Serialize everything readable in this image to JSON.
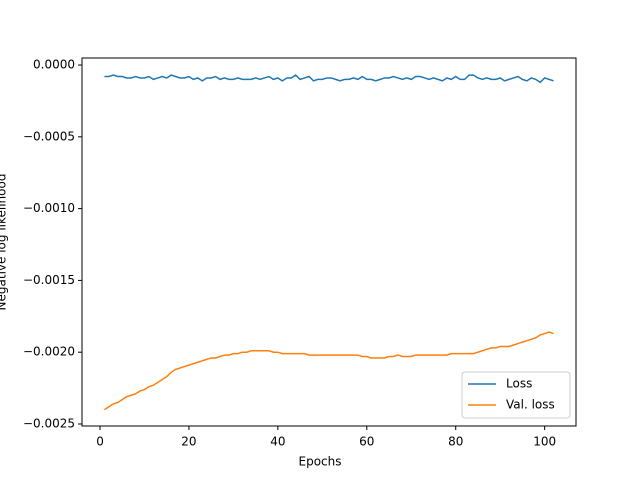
{
  "chart_data": {
    "type": "line",
    "xlabel": "Epochs",
    "ylabel": "Negative log likelihood",
    "x": [
      1,
      2,
      3,
      4,
      5,
      6,
      7,
      8,
      9,
      10,
      11,
      12,
      13,
      14,
      15,
      16,
      17,
      18,
      19,
      20,
      21,
      22,
      23,
      24,
      25,
      26,
      27,
      28,
      29,
      30,
      31,
      32,
      33,
      34,
      35,
      36,
      37,
      38,
      39,
      40,
      41,
      42,
      43,
      44,
      45,
      46,
      47,
      48,
      49,
      50,
      51,
      52,
      53,
      54,
      55,
      56,
      57,
      58,
      59,
      60,
      61,
      62,
      63,
      64,
      65,
      66,
      67,
      68,
      69,
      70,
      71,
      72,
      73,
      74,
      75,
      76,
      77,
      78,
      79,
      80,
      81,
      82,
      83,
      84,
      85,
      86,
      87,
      88,
      89,
      90,
      91,
      92,
      93,
      94,
      95,
      96,
      97,
      98,
      99,
      100,
      101,
      102
    ],
    "series": [
      {
        "name": "Loss",
        "color": "#1f77b4",
        "values": [
          -8e-05,
          -8e-05,
          -7e-05,
          -8e-05,
          -8e-05,
          -9e-05,
          -9e-05,
          -8e-05,
          -9e-05,
          -9e-05,
          -8e-05,
          -0.0001,
          -9e-05,
          -8e-05,
          -9e-05,
          -7e-05,
          -8e-05,
          -9e-05,
          -9e-05,
          -8e-05,
          -0.0001,
          -9e-05,
          -0.00011,
          -9e-05,
          -9e-05,
          -8e-05,
          -0.0001,
          -9e-05,
          -0.0001,
          -0.0001,
          -9e-05,
          -0.0001,
          -0.0001,
          -0.0001,
          -9e-05,
          -0.0001,
          -9e-05,
          -8e-05,
          -0.0001,
          -9e-05,
          -0.00011,
          -9e-05,
          -9e-05,
          -7e-05,
          -0.0001,
          -9e-05,
          -8e-05,
          -0.00011,
          -0.0001,
          -0.0001,
          -9e-05,
          -9e-05,
          -0.0001,
          -0.00011,
          -0.0001,
          -0.0001,
          -9e-05,
          -0.0001,
          -8e-05,
          -0.0001,
          -0.0001,
          -0.00011,
          -0.0001,
          -9e-05,
          -9e-05,
          -8e-05,
          -9e-05,
          -0.0001,
          -9e-05,
          -0.0001,
          -8e-05,
          -8e-05,
          -9e-05,
          -0.0001,
          -9e-05,
          -0.0001,
          -0.00011,
          -9e-05,
          -0.0001,
          -8e-05,
          -0.0001,
          -0.0001,
          -7e-05,
          -7e-05,
          -9e-05,
          -0.0001,
          -9e-05,
          -0.0001,
          -0.0001,
          -9e-05,
          -0.00011,
          -0.0001,
          -9e-05,
          -8e-05,
          -0.0001,
          -0.00011,
          -9e-05,
          -0.0001,
          -0.00012,
          -9e-05,
          -0.0001,
          -0.00011
        ]
      },
      {
        "name": "Val. loss",
        "color": "#ff7f0e",
        "values": [
          -0.0024,
          -0.00238,
          -0.00236,
          -0.00235,
          -0.00233,
          -0.00231,
          -0.0023,
          -0.00229,
          -0.00227,
          -0.00226,
          -0.00224,
          -0.00223,
          -0.00221,
          -0.00219,
          -0.00217,
          -0.00214,
          -0.00212,
          -0.00211,
          -0.0021,
          -0.00209,
          -0.00208,
          -0.00207,
          -0.00206,
          -0.00205,
          -0.00204,
          -0.00204,
          -0.00203,
          -0.00202,
          -0.00202,
          -0.00201,
          -0.00201,
          -0.002,
          -0.002,
          -0.00199,
          -0.00199,
          -0.00199,
          -0.00199,
          -0.00199,
          -0.002,
          -0.002,
          -0.00201,
          -0.00201,
          -0.00201,
          -0.00201,
          -0.00201,
          -0.00201,
          -0.00202,
          -0.00202,
          -0.00202,
          -0.00202,
          -0.00202,
          -0.00202,
          -0.00202,
          -0.00202,
          -0.00202,
          -0.00202,
          -0.00202,
          -0.00202,
          -0.00203,
          -0.00203,
          -0.00204,
          -0.00204,
          -0.00204,
          -0.00204,
          -0.00203,
          -0.00203,
          -0.00202,
          -0.00203,
          -0.00203,
          -0.00203,
          -0.00202,
          -0.00202,
          -0.00202,
          -0.00202,
          -0.00202,
          -0.00202,
          -0.00202,
          -0.00202,
          -0.00201,
          -0.00201,
          -0.00201,
          -0.00201,
          -0.00201,
          -0.00201,
          -0.002,
          -0.00199,
          -0.00198,
          -0.00197,
          -0.00197,
          -0.00196,
          -0.00196,
          -0.00196,
          -0.00195,
          -0.00194,
          -0.00193,
          -0.00192,
          -0.00191,
          -0.0019,
          -0.00188,
          -0.00187,
          -0.00186,
          -0.00187
        ]
      }
    ],
    "xlim": [
      -4.05,
      107.05
    ],
    "xticks": [
      0,
      20,
      40,
      60,
      80,
      100
    ],
    "ylim": [
      -0.002514,
      4.9e-05
    ],
    "yticks": [
      {
        "value": 0,
        "label": "0.0000"
      },
      {
        "value": -0.0005,
        "label": "−0.0005"
      },
      {
        "value": -0.001,
        "label": "−0.0010"
      },
      {
        "value": -0.0015,
        "label": "−0.0015"
      },
      {
        "value": -0.002,
        "label": "−0.0020"
      },
      {
        "value": -0.0025,
        "label": "−0.0025"
      }
    ],
    "legend": "lower right"
  }
}
